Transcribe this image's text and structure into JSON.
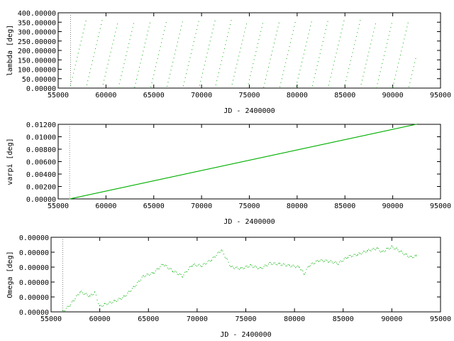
{
  "colors": {
    "series": "#00b000",
    "axis": "#000000",
    "marker": "#808080",
    "background": "#ffffff"
  },
  "chart_data": [
    {
      "type": "scatter",
      "xlabel": "JD - 2400000",
      "ylabel": "lambda [deg]",
      "xlim": [
        55000,
        95000
      ],
      "ylim": [
        0,
        400
      ],
      "xticks": [
        "55000",
        "60000",
        "65000",
        "70000",
        "75000",
        "80000",
        "85000",
        "90000",
        "95000"
      ],
      "yticks": [
        "0.00000",
        "50.00000",
        "100.00000",
        "150.00000",
        "200.00000",
        "250.00000",
        "300.00000",
        "350.00000",
        "400.00000"
      ],
      "marker_x": 56300,
      "series": [
        {
          "pattern": "sawtooth",
          "x_start": 56300,
          "x_end": 92400,
          "x_step": 100,
          "period_days": 1687.4,
          "y_range": [
            0,
            360
          ],
          "start_value": 15
        }
      ]
    },
    {
      "type": "line",
      "xlabel": "JD - 2400000",
      "ylabel": "varpi [deg]",
      "xlim": [
        55000,
        95000
      ],
      "ylim": [
        0,
        0.012
      ],
      "xticks": [
        "55000",
        "60000",
        "65000",
        "70000",
        "75000",
        "80000",
        "85000",
        "90000",
        "95000"
      ],
      "yticks": [
        "0.00000",
        "0.00200",
        "0.00400",
        "0.00600",
        "0.00800",
        "0.01000",
        "0.01200"
      ],
      "marker_x": 56200,
      "series": [
        {
          "x": [
            56200,
            92500
          ],
          "y": [
            0.0,
            0.01202
          ]
        }
      ]
    },
    {
      "type": "scatter",
      "xlabel": "JD - 2400000",
      "ylabel": "Omega [deg]",
      "xlim": [
        55000,
        95000
      ],
      "ylim": [
        0,
        1e-07
      ],
      "xticks": [
        "55000",
        "60000",
        "65000",
        "70000",
        "75000",
        "80000",
        "85000",
        "90000",
        "95000"
      ],
      "yticks": [
        "0.00000",
        "0.00000",
        "0.00000",
        "0.00000",
        "0.00000",
        "0.00000"
      ],
      "marker_x": 56200,
      "series": [
        {
          "x_step": 120,
          "x": [
            56200,
            57000,
            58000,
            59000,
            59500,
            60000,
            60500,
            61500,
            62500,
            63500,
            64500,
            65500,
            66500,
            67500,
            68500,
            69500,
            70500,
            71500,
            72500,
            73500,
            74500,
            75500,
            76500,
            77500,
            78500,
            79500,
            80500,
            81000,
            81500,
            82500,
            83500,
            84500,
            85500,
            86500,
            87500,
            88500,
            89000,
            89500,
            90000,
            90500,
            91000,
            91500,
            92000,
            92500
          ],
          "y": [
            0.0,
            0.1,
            0.27,
            0.21,
            0.26,
            0.07,
            0.1,
            0.14,
            0.2,
            0.33,
            0.48,
            0.52,
            0.64,
            0.55,
            0.48,
            0.63,
            0.62,
            0.7,
            0.83,
            0.6,
            0.58,
            0.62,
            0.58,
            0.65,
            0.64,
            0.62,
            0.6,
            0.51,
            0.62,
            0.69,
            0.68,
            0.65,
            0.74,
            0.77,
            0.82,
            0.85,
            0.8,
            0.84,
            0.87,
            0.84,
            0.8,
            0.76,
            0.73,
            0.75
          ]
        }
      ]
    }
  ]
}
